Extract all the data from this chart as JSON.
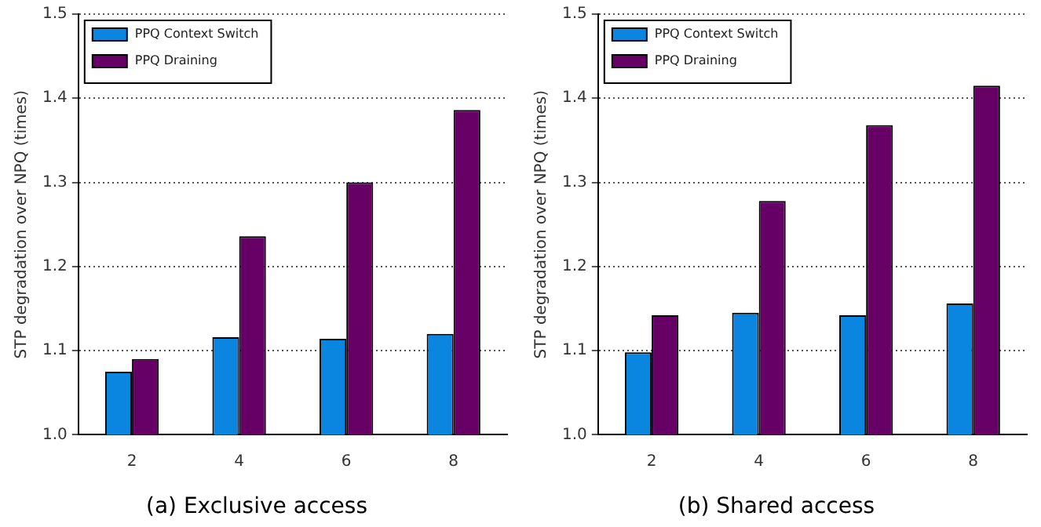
{
  "chart_data": [
    {
      "type": "bar",
      "title": "(a) Exclusive access",
      "ylabel": "STP degradation over NPQ (times)",
      "categories": [
        "2",
        "4",
        "6",
        "8"
      ],
      "series": [
        {
          "name": "PPQ Context Switch",
          "color": "#0a86e0",
          "values": [
            1.075,
            1.116,
            1.114,
            1.12
          ]
        },
        {
          "name": "PPQ Draining",
          "color": "#660066",
          "values": [
            1.09,
            1.236,
            1.3,
            1.386
          ]
        }
      ],
      "ylim": [
        1.0,
        1.5
      ],
      "yticks": [
        {
          "value": 1.0,
          "label": "1.0"
        },
        {
          "value": 1.1,
          "label": "1.1"
        },
        {
          "value": 1.2,
          "label": "1.2"
        },
        {
          "value": 1.3,
          "label": "1.3"
        },
        {
          "value": 1.4,
          "label": "1.4"
        },
        {
          "value": 1.5,
          "label": "1.5"
        }
      ],
      "grid": "y",
      "legend": "top left"
    },
    {
      "type": "bar",
      "title": "(b) Shared access",
      "ylabel": "STP degradation over NPQ (times)",
      "categories": [
        "2",
        "4",
        "6",
        "8"
      ],
      "series": [
        {
          "name": "PPQ Context Switch",
          "color": "#0a86e0",
          "values": [
            1.098,
            1.145,
            1.142,
            1.156
          ]
        },
        {
          "name": "PPQ Draining",
          "color": "#660066",
          "values": [
            1.142,
            1.278,
            1.368,
            1.415
          ]
        }
      ],
      "ylim": [
        1.0,
        1.5
      ],
      "yticks": [
        {
          "value": 1.0,
          "label": "1.0"
        },
        {
          "value": 1.1,
          "label": "1.1"
        },
        {
          "value": 1.2,
          "label": "1.2"
        },
        {
          "value": 1.3,
          "label": "1.3"
        },
        {
          "value": 1.4,
          "label": "1.4"
        },
        {
          "value": 1.5,
          "label": "1.5"
        }
      ],
      "grid": "y",
      "legend": "top left"
    }
  ]
}
